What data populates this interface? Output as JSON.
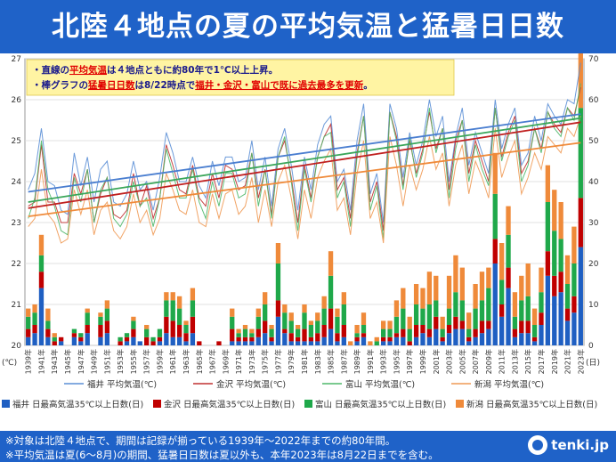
{
  "header": {
    "title": "北陸４地点の夏の平均気温と猛暑日日数"
  },
  "notes": [
    [
      {
        "t": "・直線の",
        "c": "#1a1a8c",
        "u": false
      },
      {
        "t": "平均気温",
        "c": "#e00000",
        "u": true
      },
      {
        "t": "は４地点ともに約80年で1℃以上上昇",
        "c": "#1a1a8c",
        "u": false
      },
      {
        "t": "。",
        "c": "#1a1a8c",
        "u": false
      }
    ],
    [
      {
        "t": "・棒グラフの",
        "c": "#1a1a8c",
        "u": false
      },
      {
        "t": "猛暑日日数",
        "c": "#e00000",
        "u": true
      },
      {
        "t": "は8/22時点で",
        "c": "#1a1a8c",
        "u": false
      },
      {
        "t": "福井・金沢・富山で既に過去最多を更新",
        "c": "#e00000",
        "u": true
      },
      {
        "t": "。",
        "c": "#1a1a8c",
        "u": false
      }
    ]
  ],
  "footer": {
    "line1": "※対象は北陸４地点で、期間は記録が揃っている1939年～2022年までの約80年間。",
    "line2": "※平均気温は夏(6～8月)の期間、猛暑日日数は夏以外も、本年2023年は8月22日までを含む。",
    "logo_text": "tenki.jp"
  },
  "chart_data": {
    "type": "bar+line",
    "x_years": [
      1939,
      1940,
      1941,
      1942,
      1943,
      1944,
      1945,
      1946,
      1947,
      1948,
      1949,
      1950,
      1951,
      1952,
      1953,
      1954,
      1955,
      1956,
      1957,
      1958,
      1959,
      1960,
      1961,
      1962,
      1963,
      1964,
      1965,
      1966,
      1967,
      1968,
      1969,
      1970,
      1971,
      1972,
      1973,
      1974,
      1975,
      1976,
      1977,
      1978,
      1979,
      1980,
      1981,
      1982,
      1983,
      1984,
      1985,
      1986,
      1987,
      1988,
      1989,
      1990,
      1991,
      1992,
      1993,
      1994,
      1995,
      1996,
      1997,
      1998,
      1999,
      2000,
      2001,
      2002,
      2003,
      2004,
      2005,
      2006,
      2007,
      2008,
      2009,
      2010,
      2011,
      2012,
      2013,
      2014,
      2015,
      2016,
      2017,
      2018,
      2019,
      2020,
      2021,
      2022,
      2023
    ],
    "x_tick_labels": [
      "1939年",
      "1941年",
      "1943年",
      "1945年",
      "1947年",
      "1949年",
      "1951年",
      "1953年",
      "1955年",
      "1957年",
      "1959年",
      "1961年",
      "1963年",
      "1965年",
      "1967年",
      "1969年",
      "1971年",
      "1973年",
      "1975年",
      "1977年",
      "1979年",
      "1981年",
      "1983年",
      "1985年",
      "1987年",
      "1989年",
      "1991年",
      "1993年",
      "1995年",
      "1997年",
      "1999年",
      "2001年",
      "2003年",
      "2005年",
      "2007年",
      "2009年",
      "2011年",
      "2013年",
      "2015年",
      "2017年",
      "2019年",
      "2021年",
      "2023年"
    ],
    "left_axis": {
      "unit": "(℃)",
      "min": 20,
      "max": 27,
      "ticks": [
        "20",
        "21",
        "22",
        "23",
        "24",
        "25",
        "26",
        "27"
      ]
    },
    "right_axis": {
      "unit": "(日)",
      "min": 0,
      "max": 70,
      "ticks": [
        "0",
        "10",
        "20",
        "30",
        "40",
        "50",
        "60",
        "70"
      ]
    },
    "grid": true,
    "legend_placement": "bottom",
    "bar_series": [
      {
        "name": "福井 日最高気温35℃以上日数(日)",
        "color": "#1f5fc2",
        "values": [
          2,
          3,
          14,
          2,
          0,
          1,
          0,
          2,
          1,
          3,
          0,
          2,
          3,
          0,
          0,
          1,
          2,
          1,
          0,
          0,
          1,
          3,
          2,
          2,
          1,
          3,
          0,
          0,
          0,
          0,
          0,
          1,
          1,
          1,
          1,
          2,
          3,
          1,
          7,
          3,
          1,
          1,
          1,
          1,
          1,
          2,
          4,
          1,
          2,
          0,
          1,
          2,
          0,
          0,
          1,
          1,
          2,
          2,
          0,
          2,
          3,
          2,
          4,
          1,
          3,
          4,
          4,
          1,
          2,
          3,
          4,
          20,
          7,
          14,
          2,
          3,
          3,
          1,
          5,
          17,
          12,
          13,
          6,
          8,
          24
        ]
      },
      {
        "name": "金沢 日最高気温35℃以上日数(日)",
        "color": "#c00000",
        "values": [
          2,
          2,
          4,
          2,
          1,
          1,
          0,
          1,
          1,
          2,
          0,
          3,
          3,
          0,
          1,
          1,
          2,
          0,
          2,
          1,
          1,
          4,
          4,
          3,
          2,
          4,
          1,
          0,
          0,
          1,
          0,
          3,
          1,
          1,
          1,
          2,
          3,
          1,
          4,
          1,
          2,
          1,
          3,
          1,
          2,
          3,
          5,
          2,
          3,
          0,
          1,
          1,
          0,
          0,
          1,
          1,
          1,
          2,
          1,
          3,
          2,
          2,
          3,
          1,
          2,
          3,
          2,
          1,
          2,
          3,
          2,
          6,
          3,
          5,
          2,
          3,
          3,
          1,
          3,
          6,
          5,
          5,
          3,
          4,
          12
        ]
      },
      {
        "name": "富山 日最高気温35℃以上日数(日)",
        "color": "#1fa84a",
        "values": [
          3,
          3,
          4,
          2,
          1,
          0,
          0,
          1,
          1,
          3,
          0,
          2,
          3,
          0,
          1,
          1,
          2,
          0,
          2,
          1,
          2,
          4,
          5,
          4,
          2,
          4,
          0,
          0,
          0,
          0,
          0,
          3,
          1,
          2,
          1,
          3,
          4,
          2,
          9,
          4,
          3,
          2,
          4,
          3,
          3,
          4,
          8,
          4,
          5,
          0,
          1,
          2,
          0,
          1,
          2,
          2,
          4,
          5,
          3,
          5,
          4,
          6,
          4,
          2,
          4,
          6,
          5,
          2,
          5,
          5,
          8,
          11,
          6,
          8,
          3,
          5,
          6,
          3,
          5,
          12,
          11,
          8,
          6,
          8,
          22
        ]
      },
      {
        "name": "新潟 日最高気温35℃以上日数(日)",
        "color": "#ef8a3a",
        "values": [
          2,
          2,
          5,
          3,
          1,
          0,
          0,
          0,
          0,
          1,
          0,
          1,
          2,
          0,
          0,
          0,
          1,
          0,
          1,
          0,
          0,
          2,
          2,
          3,
          1,
          3,
          0,
          0,
          0,
          0,
          0,
          2,
          1,
          1,
          1,
          2,
          3,
          1,
          5,
          2,
          2,
          1,
          2,
          1,
          2,
          3,
          6,
          2,
          3,
          1,
          2,
          3,
          1,
          1,
          2,
          2,
          4,
          5,
          3,
          5,
          5,
          8,
          6,
          3,
          8,
          9,
          8,
          4,
          6,
          7,
          5,
          10,
          9,
          7,
          6,
          6,
          8,
          4,
          6,
          9,
          10,
          9,
          7,
          9,
          15
        ]
      }
    ],
    "line_series": [
      {
        "name": "福井 平均気温(℃)",
        "color": "#5b8fd6",
        "values": [
          23.8,
          24.2,
          25.3,
          24.0,
          23.9,
          23.3,
          23.2,
          24.7,
          23.9,
          24.6,
          23.5,
          24.3,
          24.5,
          23.5,
          23.4,
          23.7,
          24.5,
          23.8,
          24.0,
          23.3,
          24.1,
          25.2,
          24.7,
          24.0,
          24.0,
          24.6,
          23.9,
          23.6,
          24.5,
          23.9,
          24.6,
          24.6,
          24.0,
          24.1,
          25.0,
          23.8,
          24.6,
          23.4,
          24.8,
          25.3,
          24.4,
          23.3,
          24.6,
          23.8,
          24.9,
          25.4,
          25.6,
          24.0,
          24.3,
          23.3,
          25.0,
          25.9,
          23.7,
          24.2,
          23.0,
          25.9,
          25.3,
          24.1,
          25.2,
          24.4,
          25.0,
          26.0,
          25.1,
          25.6,
          24.0,
          25.1,
          25.8,
          24.4,
          25.2,
          24.7,
          24.2,
          26.0,
          24.8,
          25.4,
          25.8,
          24.4,
          24.7,
          25.6,
          25.0,
          25.9,
          25.6,
          25.4,
          26.0,
          25.9,
          26.9
        ]
      },
      {
        "name": "金沢 平均気温(℃)",
        "color": "#c03030",
        "values": [
          23.4,
          23.5,
          24.9,
          23.5,
          23.5,
          23.0,
          23.0,
          24.2,
          23.7,
          24.3,
          23.0,
          23.7,
          24.1,
          23.2,
          23.1,
          23.3,
          24.2,
          23.4,
          23.9,
          23.1,
          23.6,
          24.9,
          24.4,
          23.8,
          23.7,
          24.4,
          23.6,
          23.4,
          24.2,
          23.6,
          24.4,
          24.3,
          23.8,
          23.9,
          24.7,
          23.6,
          24.3,
          23.2,
          24.6,
          25.0,
          24.1,
          23.0,
          24.4,
          23.6,
          24.6,
          25.1,
          25.4,
          23.8,
          24.1,
          23.1,
          24.7,
          25.6,
          23.5,
          24.0,
          22.8,
          25.7,
          25.1,
          23.9,
          25.0,
          24.2,
          24.8,
          25.7,
          24.8,
          25.3,
          23.8,
          25.0,
          25.5,
          24.2,
          25.0,
          24.5,
          24.0,
          25.8,
          24.6,
          25.2,
          25.6,
          24.2,
          24.5,
          25.3,
          24.8,
          25.7,
          25.4,
          25.2,
          25.8,
          25.6,
          26.3
        ]
      },
      {
        "name": "富山 平均気温(℃)",
        "color": "#4fb86a",
        "values": [
          23.1,
          23.6,
          25.0,
          23.8,
          23.4,
          22.8,
          22.7,
          24.1,
          23.5,
          24.3,
          23.0,
          23.8,
          24.1,
          23.1,
          22.9,
          23.2,
          24.0,
          23.4,
          23.6,
          22.9,
          23.6,
          24.8,
          24.2,
          23.6,
          23.6,
          24.3,
          23.5,
          23.1,
          24.0,
          23.4,
          24.2,
          24.2,
          23.6,
          23.7,
          24.7,
          23.4,
          24.3,
          23.1,
          24.6,
          25.1,
          24.0,
          22.8,
          24.3,
          23.5,
          24.6,
          25.1,
          25.2,
          23.6,
          24.0,
          22.9,
          24.6,
          25.6,
          23.3,
          23.9,
          22.6,
          25.7,
          25.0,
          23.8,
          25.1,
          24.1,
          24.7,
          25.8,
          24.7,
          25.3,
          23.6,
          24.8,
          25.5,
          24.0,
          24.9,
          24.3,
          23.9,
          25.8,
          24.5,
          25.1,
          25.5,
          24.0,
          24.4,
          25.3,
          24.7,
          25.7,
          25.3,
          25.1,
          25.8,
          25.5,
          26.4
        ]
      },
      {
        "name": "新潟 平均気温(℃)",
        "color": "#ef9a55",
        "values": [
          22.9,
          23.1,
          24.3,
          23.2,
          23.0,
          22.5,
          22.6,
          23.8,
          23.2,
          23.8,
          22.7,
          23.3,
          23.5,
          22.8,
          22.6,
          22.9,
          23.7,
          23.0,
          23.3,
          22.7,
          23.1,
          24.2,
          23.8,
          23.3,
          23.2,
          23.8,
          23.0,
          22.9,
          23.7,
          23.1,
          23.7,
          23.8,
          23.2,
          23.4,
          24.1,
          23.0,
          23.8,
          22.9,
          24.0,
          24.4,
          23.6,
          22.6,
          23.8,
          23.1,
          24.1,
          24.5,
          24.8,
          23.3,
          23.6,
          22.7,
          24.2,
          25.0,
          23.1,
          23.5,
          22.5,
          25.1,
          24.4,
          23.4,
          24.4,
          23.8,
          24.3,
          25.1,
          24.3,
          24.7,
          23.4,
          24.4,
          24.9,
          23.7,
          24.5,
          24.1,
          23.6,
          25.3,
          24.1,
          24.6,
          25.0,
          23.7,
          24.1,
          24.7,
          24.3,
          25.1,
          24.9,
          24.7,
          25.3,
          25.1,
          25.6
        ]
      }
    ],
    "trend_lines": [
      {
        "series": "福井",
        "color": "#4a7ed0",
        "y_1939": 23.75,
        "y_2023": 25.65
      },
      {
        "series": "金沢",
        "color": "#c02020",
        "y_1939": 23.35,
        "y_2023": 25.45
      },
      {
        "series": "富山",
        "color": "#3aa65a",
        "y_1939": 23.5,
        "y_2023": 25.55
      },
      {
        "series": "新潟",
        "color": "#ef8a3a",
        "y_1939": 23.15,
        "y_2023": 24.95
      }
    ]
  }
}
